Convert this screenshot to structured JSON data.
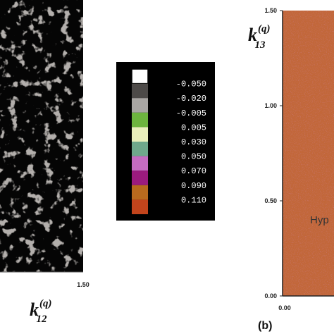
{
  "left_panel": {
    "x_label": {
      "base": "k",
      "sub": "12",
      "sup": "(q)"
    },
    "x_tick": "1.50"
  },
  "legend": {
    "colors": [
      "#ffffff",
      "#4d4a48",
      "#a9a6a3",
      "#6db43e",
      "#e9efbb",
      "#6fa88b",
      "#c46cc0",
      "#9b1b7e",
      "#b86a1e",
      "#c2441c"
    ],
    "labels": [
      "-0.050",
      "-0.020",
      "-0.005",
      "0.005",
      "0.030",
      "0.050",
      "0.070",
      "0.090",
      "0.110"
    ]
  },
  "right_panel": {
    "y_label": {
      "base": "k",
      "sub": "13",
      "sup": "(q)"
    },
    "y_ticks": [
      "1.50",
      "1.00",
      "0.50",
      "0.00"
    ],
    "x_tick": "0.00",
    "annotation": "Hyp",
    "panel_label": "(b)"
  }
}
